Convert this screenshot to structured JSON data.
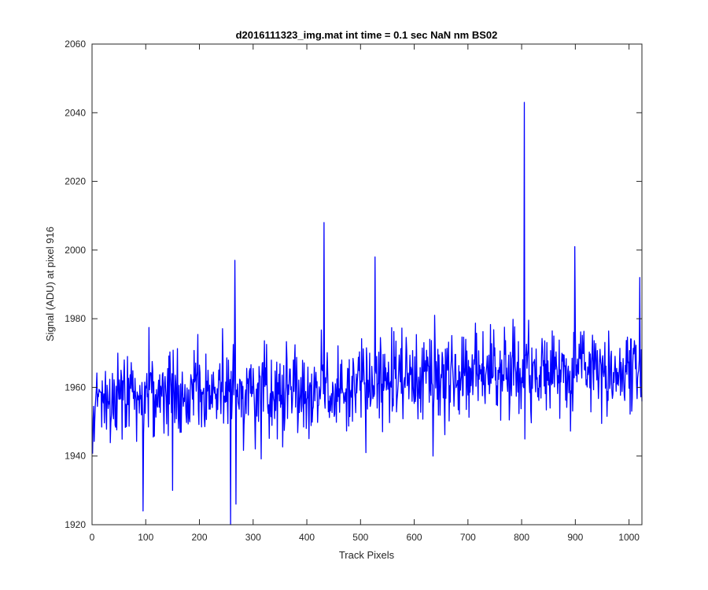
{
  "chart_data": {
    "type": "line",
    "title": "d2016111323_img.mat int time = 0.1 sec  NaN nm BS02",
    "xlabel": "Track Pixels",
    "ylabel": "Signal (ADU) at pixel 916",
    "xlim": [
      0,
      1024
    ],
    "ylim": [
      1920,
      2060
    ],
    "xticks": [
      0,
      100,
      200,
      300,
      400,
      500,
      600,
      700,
      800,
      900,
      1000
    ],
    "yticks": [
      1920,
      1940,
      1960,
      1980,
      2000,
      2020,
      2040,
      2060
    ],
    "grid": false,
    "line_color": "#0000ff",
    "series": [
      {
        "x_start": 1,
        "x_step": 1,
        "n_points": 1024,
        "baseline": {
          "start": 1956,
          "end": 1966
        },
        "noise_std": 6.5,
        "notable_points": [
          {
            "x": 95,
            "y": 1924
          },
          {
            "x": 150,
            "y": 1930
          },
          {
            "x": 258,
            "y": 1920
          },
          {
            "x": 266,
            "y": 1997
          },
          {
            "x": 268,
            "y": 1926
          },
          {
            "x": 432,
            "y": 2008
          },
          {
            "x": 510,
            "y": 1941
          },
          {
            "x": 527,
            "y": 1998
          },
          {
            "x": 635,
            "y": 1940
          },
          {
            "x": 805,
            "y": 2043
          },
          {
            "x": 899,
            "y": 2001
          },
          {
            "x": 1020,
            "y": 1992
          }
        ]
      }
    ]
  }
}
